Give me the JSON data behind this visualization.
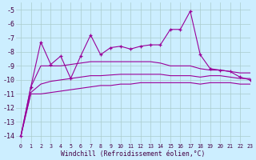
{
  "xlabel": "Windchill (Refroidissement éolien,°C)",
  "xlim": [
    -0.5,
    23
  ],
  "ylim": [
    -14.5,
    -4.5
  ],
  "yticks": [
    -14,
    -13,
    -12,
    -11,
    -10,
    -9,
    -8,
    -7,
    -6,
    -5
  ],
  "xticks": [
    0,
    1,
    2,
    3,
    4,
    5,
    6,
    7,
    8,
    9,
    10,
    11,
    12,
    13,
    14,
    15,
    16,
    17,
    18,
    19,
    20,
    21,
    22,
    23
  ],
  "background_color": "#cceeff",
  "line_color": "#990099",
  "grid_color": "#aacccc",
  "curves": {
    "jagged": [
      [
        0,
        -14.0
      ],
      [
        1,
        -10.5
      ],
      [
        2,
        -7.3
      ],
      [
        3,
        -8.9
      ],
      [
        4,
        -8.3
      ],
      [
        5,
        -9.9
      ],
      [
        6,
        -8.3
      ],
      [
        7,
        -6.8
      ],
      [
        8,
        -8.2
      ],
      [
        9,
        -7.7
      ],
      [
        10,
        -7.6
      ],
      [
        11,
        -7.8
      ],
      [
        12,
        -7.6
      ],
      [
        13,
        -7.5
      ],
      [
        14,
        -7.5
      ],
      [
        15,
        -6.4
      ],
      [
        16,
        -6.4
      ],
      [
        17,
        -5.1
      ],
      [
        18,
        -8.2
      ],
      [
        19,
        -9.2
      ],
      [
        20,
        -9.3
      ],
      [
        21,
        -9.4
      ],
      [
        22,
        -9.8
      ],
      [
        23,
        -10.0
      ]
    ],
    "smooth_upper": [
      [
        0,
        -14.0
      ],
      [
        1,
        -10.5
      ],
      [
        2,
        -9.0
      ],
      [
        3,
        -9.0
      ],
      [
        4,
        -9.0
      ],
      [
        5,
        -8.9
      ],
      [
        6,
        -8.8
      ],
      [
        7,
        -8.7
      ],
      [
        8,
        -8.7
      ],
      [
        9,
        -8.7
      ],
      [
        10,
        -8.7
      ],
      [
        11,
        -8.7
      ],
      [
        12,
        -8.7
      ],
      [
        13,
        -8.7
      ],
      [
        14,
        -8.8
      ],
      [
        15,
        -9.0
      ],
      [
        16,
        -9.0
      ],
      [
        17,
        -9.0
      ],
      [
        18,
        -9.2
      ],
      [
        19,
        -9.3
      ],
      [
        20,
        -9.3
      ],
      [
        21,
        -9.4
      ],
      [
        22,
        -9.5
      ],
      [
        23,
        -9.5
      ]
    ],
    "smooth_mid": [
      [
        0,
        -14.0
      ],
      [
        1,
        -10.9
      ],
      [
        2,
        -10.3
      ],
      [
        3,
        -10.1
      ],
      [
        4,
        -10.0
      ],
      [
        5,
        -9.9
      ],
      [
        6,
        -9.8
      ],
      [
        7,
        -9.7
      ],
      [
        8,
        -9.7
      ],
      [
        9,
        -9.65
      ],
      [
        10,
        -9.6
      ],
      [
        11,
        -9.6
      ],
      [
        12,
        -9.6
      ],
      [
        13,
        -9.6
      ],
      [
        14,
        -9.6
      ],
      [
        15,
        -9.7
      ],
      [
        16,
        -9.7
      ],
      [
        17,
        -9.7
      ],
      [
        18,
        -9.8
      ],
      [
        19,
        -9.7
      ],
      [
        20,
        -9.7
      ],
      [
        21,
        -9.8
      ],
      [
        22,
        -9.9
      ],
      [
        23,
        -9.9
      ]
    ],
    "smooth_lower": [
      [
        0,
        -14.0
      ],
      [
        1,
        -11.0
      ],
      [
        2,
        -11.0
      ],
      [
        3,
        -10.9
      ],
      [
        4,
        -10.8
      ],
      [
        5,
        -10.7
      ],
      [
        6,
        -10.6
      ],
      [
        7,
        -10.5
      ],
      [
        8,
        -10.4
      ],
      [
        9,
        -10.4
      ],
      [
        10,
        -10.3
      ],
      [
        11,
        -10.3
      ],
      [
        12,
        -10.2
      ],
      [
        13,
        -10.2
      ],
      [
        14,
        -10.2
      ],
      [
        15,
        -10.2
      ],
      [
        16,
        -10.2
      ],
      [
        17,
        -10.2
      ],
      [
        18,
        -10.3
      ],
      [
        19,
        -10.2
      ],
      [
        20,
        -10.2
      ],
      [
        21,
        -10.2
      ],
      [
        22,
        -10.3
      ],
      [
        23,
        -10.3
      ]
    ]
  }
}
